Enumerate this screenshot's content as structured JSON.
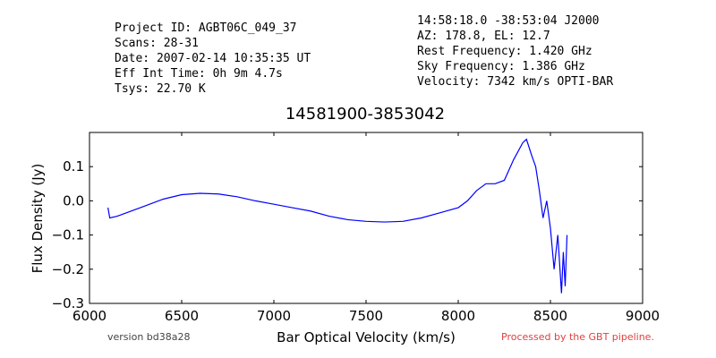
{
  "chart_data": {
    "type": "line",
    "header_left": [
      "Project ID: AGBT06C_049_37",
      "Scans: 28-31",
      "Date: 2007-02-14 10:35:35 UT",
      "Eff Int Time: 0h 9m 4.7s",
      "Tsys: 22.70 K"
    ],
    "header_right": [
      "14:58:18.0 -38:53:04 J2000",
      "AZ: 178.8, EL: 12.7",
      "Rest Frequency:   1.420 GHz",
      "Sky Frequency:    1.386 GHz",
      "Velocity: 7342 km/s OPTI-BAR"
    ],
    "title": "14581900-3853042",
    "xlabel": "Bar Optical Velocity (km/s)",
    "ylabel": "Flux Density (Jy)",
    "footer_left": "version bd38a28",
    "footer_right": "Processed by the GBT pipeline.",
    "xlim": [
      6000,
      9000
    ],
    "xticks": [
      6000,
      6500,
      7000,
      7500,
      8000,
      8500,
      9000
    ],
    "ylim": [
      -0.3,
      0.2
    ],
    "yticks": [
      {
        "value": -0.3,
        "label": "−0.3"
      },
      {
        "value": -0.2,
        "label": "−0.2"
      },
      {
        "value": -0.1,
        "label": "−0.1"
      },
      {
        "value": 0,
        "label": "0.0"
      },
      0.1
    ],
    "series": [
      {
        "color": "#0000ff",
        "x": [
          6100,
          6110,
          6150,
          6200,
          6300,
          6400,
          6500,
          6600,
          6700,
          6800,
          6900,
          7000,
          7100,
          7200,
          7300,
          7400,
          7500,
          7600,
          7700,
          7800,
          7900,
          8000,
          8050,
          8100,
          8150,
          8200,
          8250,
          8300,
          8350,
          8370,
          8400,
          8420,
          8440,
          8460,
          8480,
          8500,
          8520,
          8540,
          8560,
          8570,
          8580,
          8590
        ],
        "values": [
          -0.02,
          -0.05,
          -0.045,
          -0.035,
          -0.015,
          0.005,
          0.018,
          0.022,
          0.02,
          0.012,
          0.0,
          -0.01,
          -0.02,
          -0.03,
          -0.045,
          -0.055,
          -0.06,
          -0.062,
          -0.06,
          -0.05,
          -0.035,
          -0.02,
          0.0,
          0.03,
          0.05,
          0.05,
          0.06,
          0.12,
          0.17,
          0.18,
          0.13,
          0.1,
          0.03,
          -0.05,
          0.0,
          -0.08,
          -0.2,
          -0.1,
          -0.27,
          -0.15,
          -0.25,
          -0.1
        ]
      }
    ]
  }
}
